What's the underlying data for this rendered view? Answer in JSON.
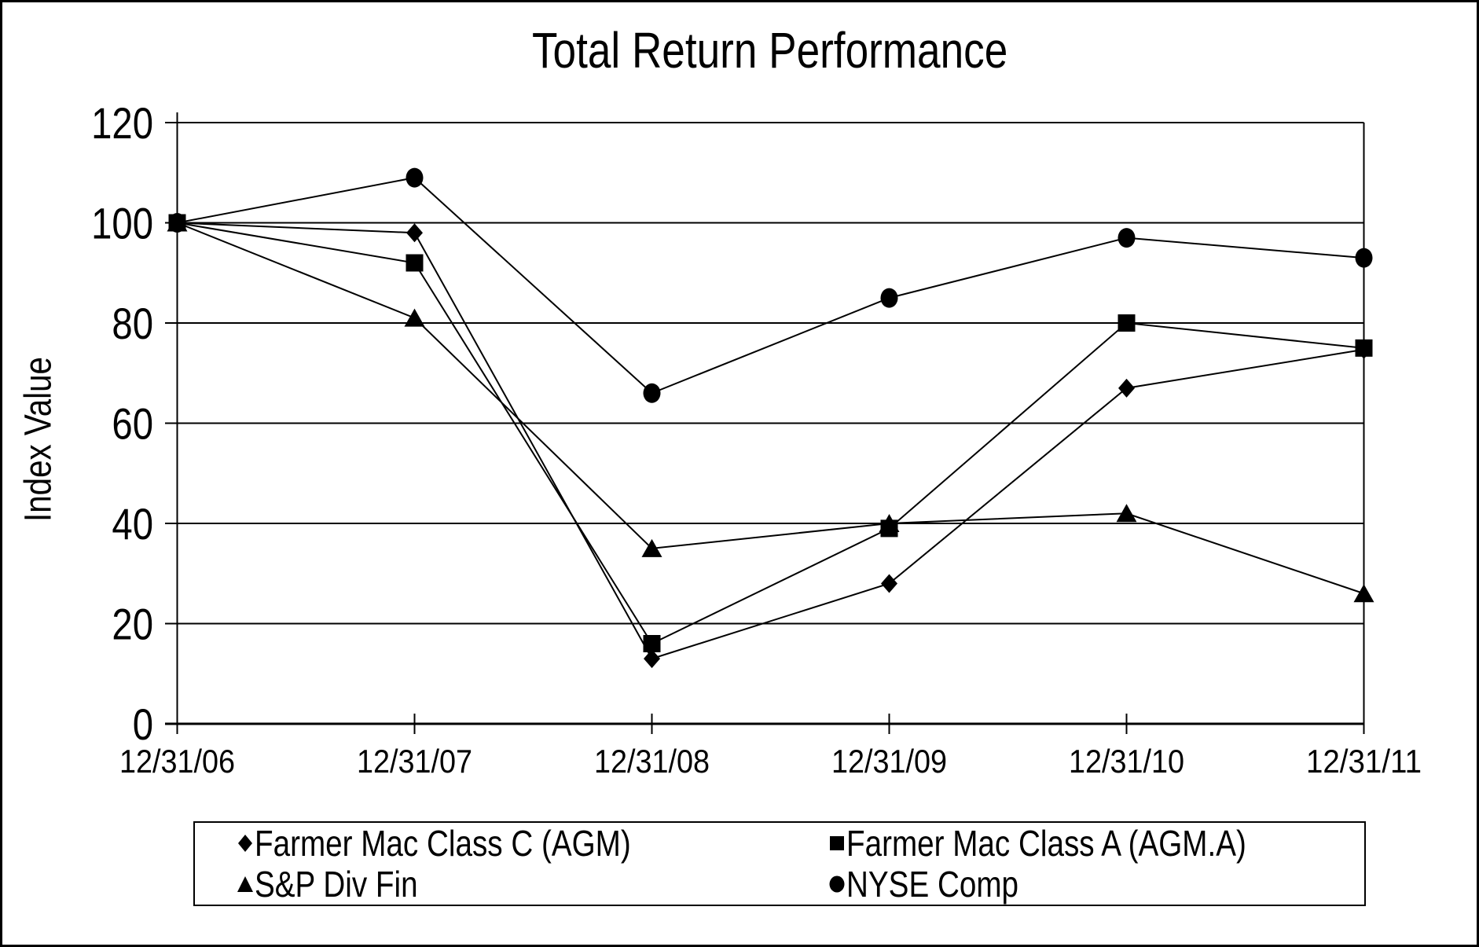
{
  "chart_data": {
    "type": "line",
    "title": "Total Return Performance",
    "ylabel": "Index Value",
    "ylim": [
      0,
      120
    ],
    "yticks": [
      0,
      20,
      40,
      60,
      80,
      100,
      120
    ],
    "x_labels": [
      "12/31/06",
      "12/31/07",
      "12/31/08",
      "12/31/09",
      "12/31/10",
      "12/31/11"
    ],
    "grid": true,
    "legend_position": "bottom",
    "line_color": "#000000",
    "background_color": "#ffffff",
    "series": [
      {
        "name": "Farmer Mac Class C (AGM)",
        "marker": "diamond",
        "values": [
          100,
          98,
          13,
          28,
          67,
          74.7
        ]
      },
      {
        "name": "Farmer Mac Class A (AGM.A)",
        "marker": "square",
        "values": [
          100,
          92,
          16,
          39,
          80,
          75
        ]
      },
      {
        "name": "S&P Div Fin",
        "marker": "triangle",
        "values": [
          100,
          81,
          35,
          40,
          42,
          26
        ]
      },
      {
        "name": "NYSE Comp",
        "marker": "circle",
        "values": [
          100,
          109,
          66,
          85,
          97,
          93
        ]
      }
    ]
  }
}
